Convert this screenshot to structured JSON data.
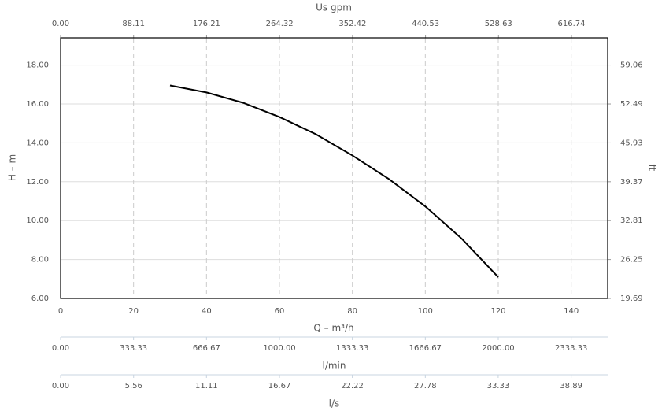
{
  "chart_data": {
    "type": "line",
    "xlabel": "Q – m³/h",
    "ylabel": "H – m",
    "y2label": "ft",
    "x": [
      30,
      40,
      50,
      60,
      70,
      80,
      90,
      100,
      110,
      120
    ],
    "series": [
      {
        "color": "#000000",
        "values": [
          16.95,
          16.59,
          16.06,
          15.33,
          14.44,
          13.35,
          12.14,
          10.73,
          9.07,
          7.09
        ]
      }
    ],
    "xlim": [
      0,
      150
    ],
    "xticks": [
      0,
      20,
      40,
      60,
      80,
      100,
      120,
      140
    ],
    "ylim": [
      6,
      19.4
    ],
    "yticks": [
      {
        "value": 6,
        "label": "6.00"
      },
      {
        "value": 8,
        "label": "8.00"
      },
      {
        "value": 10,
        "label": "10.00"
      },
      {
        "value": 12,
        "label": "12.00"
      },
      {
        "value": 14,
        "label": "14.00"
      },
      {
        "value": 16,
        "label": "16.00"
      },
      {
        "value": 18,
        "label": "18.00"
      }
    ],
    "y2lim": [
      19.69,
      63.65
    ],
    "y2ticks": [
      19.69,
      26.25,
      32.81,
      39.37,
      45.93,
      52.49,
      59.06
    ],
    "grid": true,
    "top_axis": {
      "label": "Us gpm",
      "lim": [
        0,
        660.43
      ],
      "ticks": [
        {
          "value": 0,
          "label": "0.00"
        },
        88.11,
        176.21,
        264.32,
        352.42,
        440.53,
        528.63,
        616.74
      ]
    },
    "extra_axes": [
      {
        "label": "l/min",
        "lim": [
          0,
          2500
        ],
        "ticks": [
          {
            "value": 0,
            "label": "0.00"
          },
          333.33,
          666.67,
          {
            "value": 1000,
            "label": "1000.00"
          },
          1333.33,
          1666.67,
          {
            "value": 2000,
            "label": "2000.00"
          },
          2333.33
        ]
      },
      {
        "label": "l/s",
        "lim": [
          0,
          41.67
        ],
        "ticks": [
          {
            "value": 0,
            "label": "0.00"
          },
          5.56,
          11.11,
          16.67,
          22.22,
          27.78,
          33.33,
          38.89
        ]
      }
    ]
  }
}
